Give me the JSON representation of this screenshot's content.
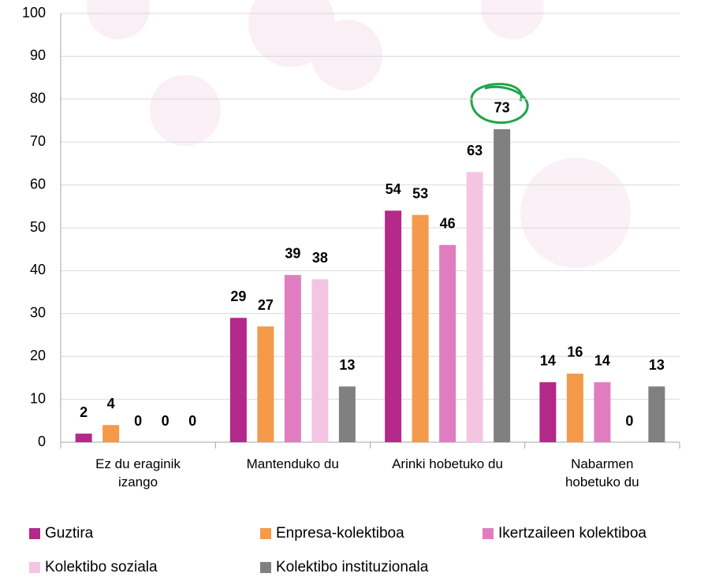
{
  "chart_data": {
    "type": "bar",
    "categories": [
      "Ez du eraginik\nizango",
      "Mantenduko du",
      "Arinki hobetuko du",
      "Nabarmen\nhobetuko du"
    ],
    "series": [
      {
        "name": "Guztira",
        "color": "#b3298a",
        "values": [
          2,
          29,
          54,
          14
        ]
      },
      {
        "name": "Enpresa-kolektiboa",
        "color": "#f49a4a",
        "values": [
          4,
          27,
          53,
          16
        ]
      },
      {
        "name": "Ikertzaileen kolektiboa",
        "color": "#e07dc1",
        "values": [
          0,
          39,
          46,
          14
        ]
      },
      {
        "name": "Kolektibo soziala",
        "color": "#f4c5e3",
        "values": [
          0,
          38,
          63,
          0
        ]
      },
      {
        "name": "Kolektibo instituzionala",
        "color": "#808080",
        "values": [
          0,
          13,
          73,
          13
        ]
      }
    ],
    "ylim": [
      0,
      100
    ],
    "yticks": [
      0,
      10,
      20,
      30,
      40,
      50,
      60,
      70,
      80,
      90,
      100
    ],
    "grid": true
  }
}
